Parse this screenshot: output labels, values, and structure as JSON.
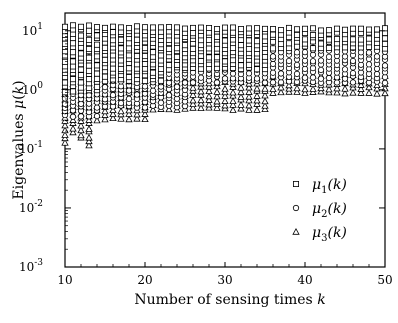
{
  "chart_data": {
    "type": "scatter",
    "title": "",
    "xlabel": "Number of sensing times k",
    "ylabel": "Eigenvalues μ(k)",
    "xlim": [
      10,
      50
    ],
    "ylim": [
      0.001,
      20
    ],
    "yscale": "log",
    "grid": false,
    "legend_position": "right",
    "x_ticks": [
      {
        "value": 10,
        "label": "10"
      },
      {
        "value": 20,
        "label": "20"
      },
      {
        "value": 30,
        "label": "30"
      },
      {
        "value": 40,
        "label": "40"
      },
      {
        "value": 50,
        "label": "50"
      }
    ],
    "y_ticks": [
      {
        "value": 0.001,
        "base": "10",
        "exp": "-3"
      },
      {
        "value": 0.01,
        "base": "10",
        "exp": "-2"
      },
      {
        "value": 0.1,
        "base": "10",
        "exp": "-1"
      },
      {
        "value": 1,
        "base": "10",
        "exp": "0"
      },
      {
        "value": 10,
        "base": "10",
        "exp": "1"
      }
    ],
    "series": [
      {
        "name": "μ1(k)",
        "marker": "square",
        "bands": [
          {
            "x_from": 10,
            "x_to": 14,
            "y_min": 0.9,
            "y_max": 13.5
          },
          {
            "x_from": 15,
            "x_to": 22,
            "y_min": 1.4,
            "y_max": 13
          },
          {
            "x_from": 23,
            "x_to": 35,
            "y_min": 2.2,
            "y_max": 12.5
          },
          {
            "x_from": 36,
            "x_to": 50,
            "y_min": 5,
            "y_max": 12
          }
        ]
      },
      {
        "name": "μ2(k)",
        "marker": "circle",
        "bands": [
          {
            "x_from": 10,
            "x_to": 14,
            "y_min": 0.35,
            "y_max": 5
          },
          {
            "x_from": 15,
            "x_to": 25,
            "y_min": 0.5,
            "y_max": 5.5
          },
          {
            "x_from": 26,
            "x_to": 50,
            "y_min": 1.3,
            "y_max": 6
          }
        ]
      },
      {
        "name": "μ3(k)",
        "marker": "triangle",
        "bands": [
          {
            "x_from": 10,
            "x_to": 10,
            "y_min": 0.12,
            "y_max": 1.3
          },
          {
            "x_from": 11,
            "x_to": 11,
            "y_min": 0.18,
            "y_max": 1.4
          },
          {
            "x_from": 12,
            "x_to": 12,
            "y_min": 0.14,
            "y_max": 1.5
          },
          {
            "x_from": 13,
            "x_to": 13,
            "y_min": 0.11,
            "y_max": 1.5
          },
          {
            "x_from": 14,
            "x_to": 20,
            "y_min": 0.3,
            "y_max": 1.6
          },
          {
            "x_from": 21,
            "x_to": 35,
            "y_min": 0.45,
            "y_max": 1.7
          },
          {
            "x_from": 36,
            "x_to": 50,
            "y_min": 0.85,
            "y_max": 1.9
          }
        ]
      }
    ]
  },
  "legend": {
    "items": [
      {
        "name": "μ1(k)",
        "sym": "μ",
        "sub": "1",
        "arg": "(k)",
        "marker": "square"
      },
      {
        "name": "μ2(k)",
        "sym": "μ",
        "sub": "2",
        "arg": "(k)",
        "marker": "circle"
      },
      {
        "name": "μ3(k)",
        "sym": "μ",
        "sub": "3",
        "arg": "(k)",
        "marker": "triangle"
      }
    ]
  }
}
